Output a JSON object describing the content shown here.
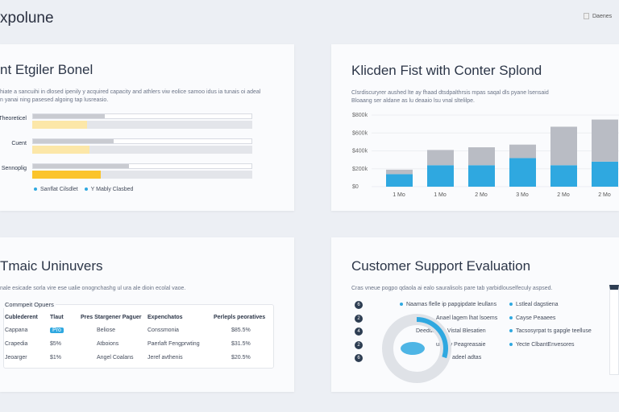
{
  "app": {
    "title": "xpolune",
    "header_button": "Daenes"
  },
  "card1": {
    "title": "nt Etgiler Bonel",
    "desc": [
      "hiate a sancuihi in dlosed ipenily y acquired capacity and athlers viw eolice samoo idus ia tunais oi adeal",
      "n yanai ning pasesed algoing tap lusreasio."
    ],
    "rows": [
      {
        "label": "Theoreticel",
        "gray": 0.33,
        "yellow": 0.25
      },
      {
        "label": "Cuent",
        "gray": 0.37,
        "yellow": 0.26
      },
      {
        "label": "Sennoplig",
        "gray": 0.44,
        "yellow": 0.31
      }
    ],
    "legend": [
      "Sanflat Cilsdlet",
      "Y Mably Clasbed"
    ],
    "colors": {
      "gray": "#c9cbd1",
      "yellow_light": "#fce7a8",
      "yellow": "#fbc42b",
      "legend": "#2fa8e0"
    }
  },
  "card2": {
    "title": "Klicden Fist with Conter Splond",
    "desc": [
      "Clsrdiscuryrer aushed lte ay fhaad dtsdpalthrsis mpas saqal dls pyane lsensaid",
      "Bloaang ser aldane as lu deaaio lsu vnal sltelilpe."
    ],
    "chart_data": {
      "type": "bar",
      "stacked": true,
      "categories": [
        "1 Mo",
        "1 Mo",
        "2 Mo",
        "3 Mo",
        "2 Mo",
        "2 Mo"
      ],
      "yticks": [
        "$800k",
        "$600k",
        "$400k",
        "$200k",
        "$0"
      ],
      "ylim": [
        0,
        800
      ],
      "series": [
        {
          "values": [
            140,
            240,
            240,
            320,
            240,
            280
          ],
          "color": "#2fa8e0"
        },
        {
          "values": [
            50,
            170,
            200,
            150,
            430,
            470
          ],
          "color": "#b9bcc4"
        }
      ]
    }
  },
  "card3": {
    "title": "Tmaic Uninuvers",
    "desc": "nale esicade sorla vire ese ualie onognchashg ul ura ale dioin ecolal vaoe.",
    "group": "Commpeit Opuers",
    "columns": [
      "Cublederent",
      "Tlaut",
      "Pres Stargener Paguer",
      "Expenchatos",
      "Perlepls peoratives"
    ],
    "rows": [
      [
        "Cappana",
        "Pro",
        "Beliose",
        "Conssmonia",
        "$85.5%"
      ],
      [
        "Crapedia",
        "$5%",
        "Atboions",
        "Paerlaft Fengprwting",
        "$31.5%"
      ],
      [
        "Jeoarger",
        "$1%",
        "Angel Coalans",
        "Jeref avthenis",
        "$20.5%"
      ]
    ],
    "badge_color": "#2fa8e0"
  },
  "card4": {
    "title": "Customer Support Evaluation",
    "desc": "Cras vneue pogpo qdaola ai ealo sauralisols pare tab yarbidlouselfeculy aspsed.",
    "numbers": [
      "6",
      "2",
      "4",
      "2",
      "6"
    ],
    "col1": [
      "Naamas flelle ip papgipdate leullans",
      "Anael lagem lhat lsoems",
      "Deeduse xx Vistal Blesatien",
      "utsgl y Peagreasaie",
      "adeel adtas"
    ],
    "col2": [
      "Lstleal dagstiena",
      "Cayse Peaaees",
      "Tacsosyrpat ts gapgle teelluse",
      "Yecte ClbantEnvesores"
    ],
    "donut": {
      "value": 0.3,
      "color": "#2fa8e0",
      "track": "#dfe2e7"
    }
  }
}
